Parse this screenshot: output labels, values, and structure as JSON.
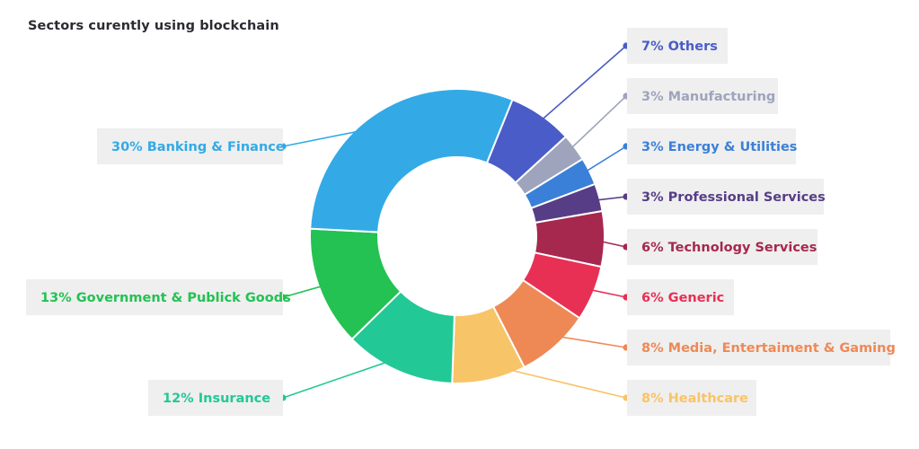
{
  "title": "Sectors curently using blockchain",
  "chart_data": {
    "type": "pie",
    "title": "Sectors curently using blockchain",
    "series": [
      {
        "name": "Others",
        "label": "7% Others",
        "value": 7,
        "color": "#4a5cc7"
      },
      {
        "name": "Manufacturing",
        "label": "3% Manufacturing",
        "value": 3,
        "color": "#9ea4bc"
      },
      {
        "name": "Energy & Utilities",
        "label": "3% Energy & Utilities",
        "value": 3,
        "color": "#3b80d8"
      },
      {
        "name": "Professional Services",
        "label": "3% Professional Services",
        "value": 3,
        "color": "#573d86"
      },
      {
        "name": "Technology Services",
        "label": "6% Technology Services",
        "value": 6,
        "color": "#a6284e"
      },
      {
        "name": "Generic",
        "label": "6% Generic",
        "value": 6,
        "color": "#e83055"
      },
      {
        "name": "Media, Entertaiment & Gaming",
        "label": "8% Media, Entertaiment & Gaming",
        "value": 8,
        "color": "#ee8956"
      },
      {
        "name": "Healthcare",
        "label": "8% Healthcare",
        "value": 8,
        "color": "#f8c468"
      },
      {
        "name": "Insurance",
        "label": "12% Insurance",
        "value": 12,
        "color": "#22c896"
      },
      {
        "name": "Government & Publick Goods",
        "label": "13% Government & Publick Goods",
        "value": 13,
        "color": "#23c252"
      },
      {
        "name": "Banking & Finance",
        "label": "30% Banking & Finance",
        "value": 30,
        "color": "#33aae6"
      }
    ]
  }
}
